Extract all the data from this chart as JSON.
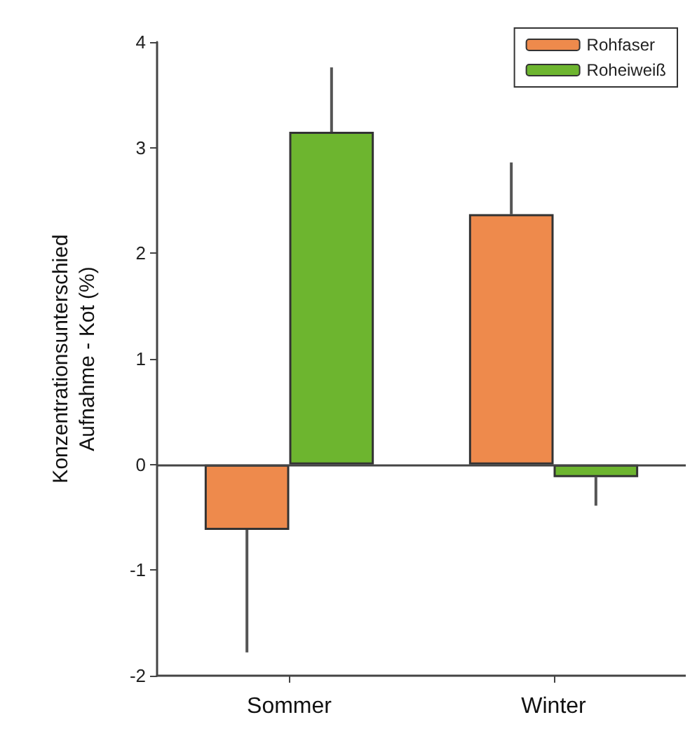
{
  "chart_data": {
    "type": "bar",
    "ylabel": "Konzentrationsunterschied\nAufnahme - Kot (%)",
    "categories": [
      "Sommer",
      "Winter"
    ],
    "series": [
      {
        "name": "Rohfaser",
        "color": "#ee8a4c",
        "values": [
          -0.62,
          2.37
        ],
        "errors": [
          [
            -1.78,
            -0.62
          ],
          [
            2.37,
            2.86
          ]
        ]
      },
      {
        "name": "Roheiweiß",
        "color": "#6db52f",
        "values": [
          3.15,
          -0.12
        ],
        "errors": [
          [
            3.15,
            3.76
          ],
          [
            -0.39,
            -0.12
          ]
        ]
      }
    ],
    "ylim": [
      -2,
      4
    ],
    "yticks": [
      -2,
      -1,
      0,
      1,
      2,
      3,
      4
    ],
    "ref_lines": [
      {
        "axis": "y",
        "value": 0
      }
    ],
    "grid": false,
    "legend": "top right"
  }
}
